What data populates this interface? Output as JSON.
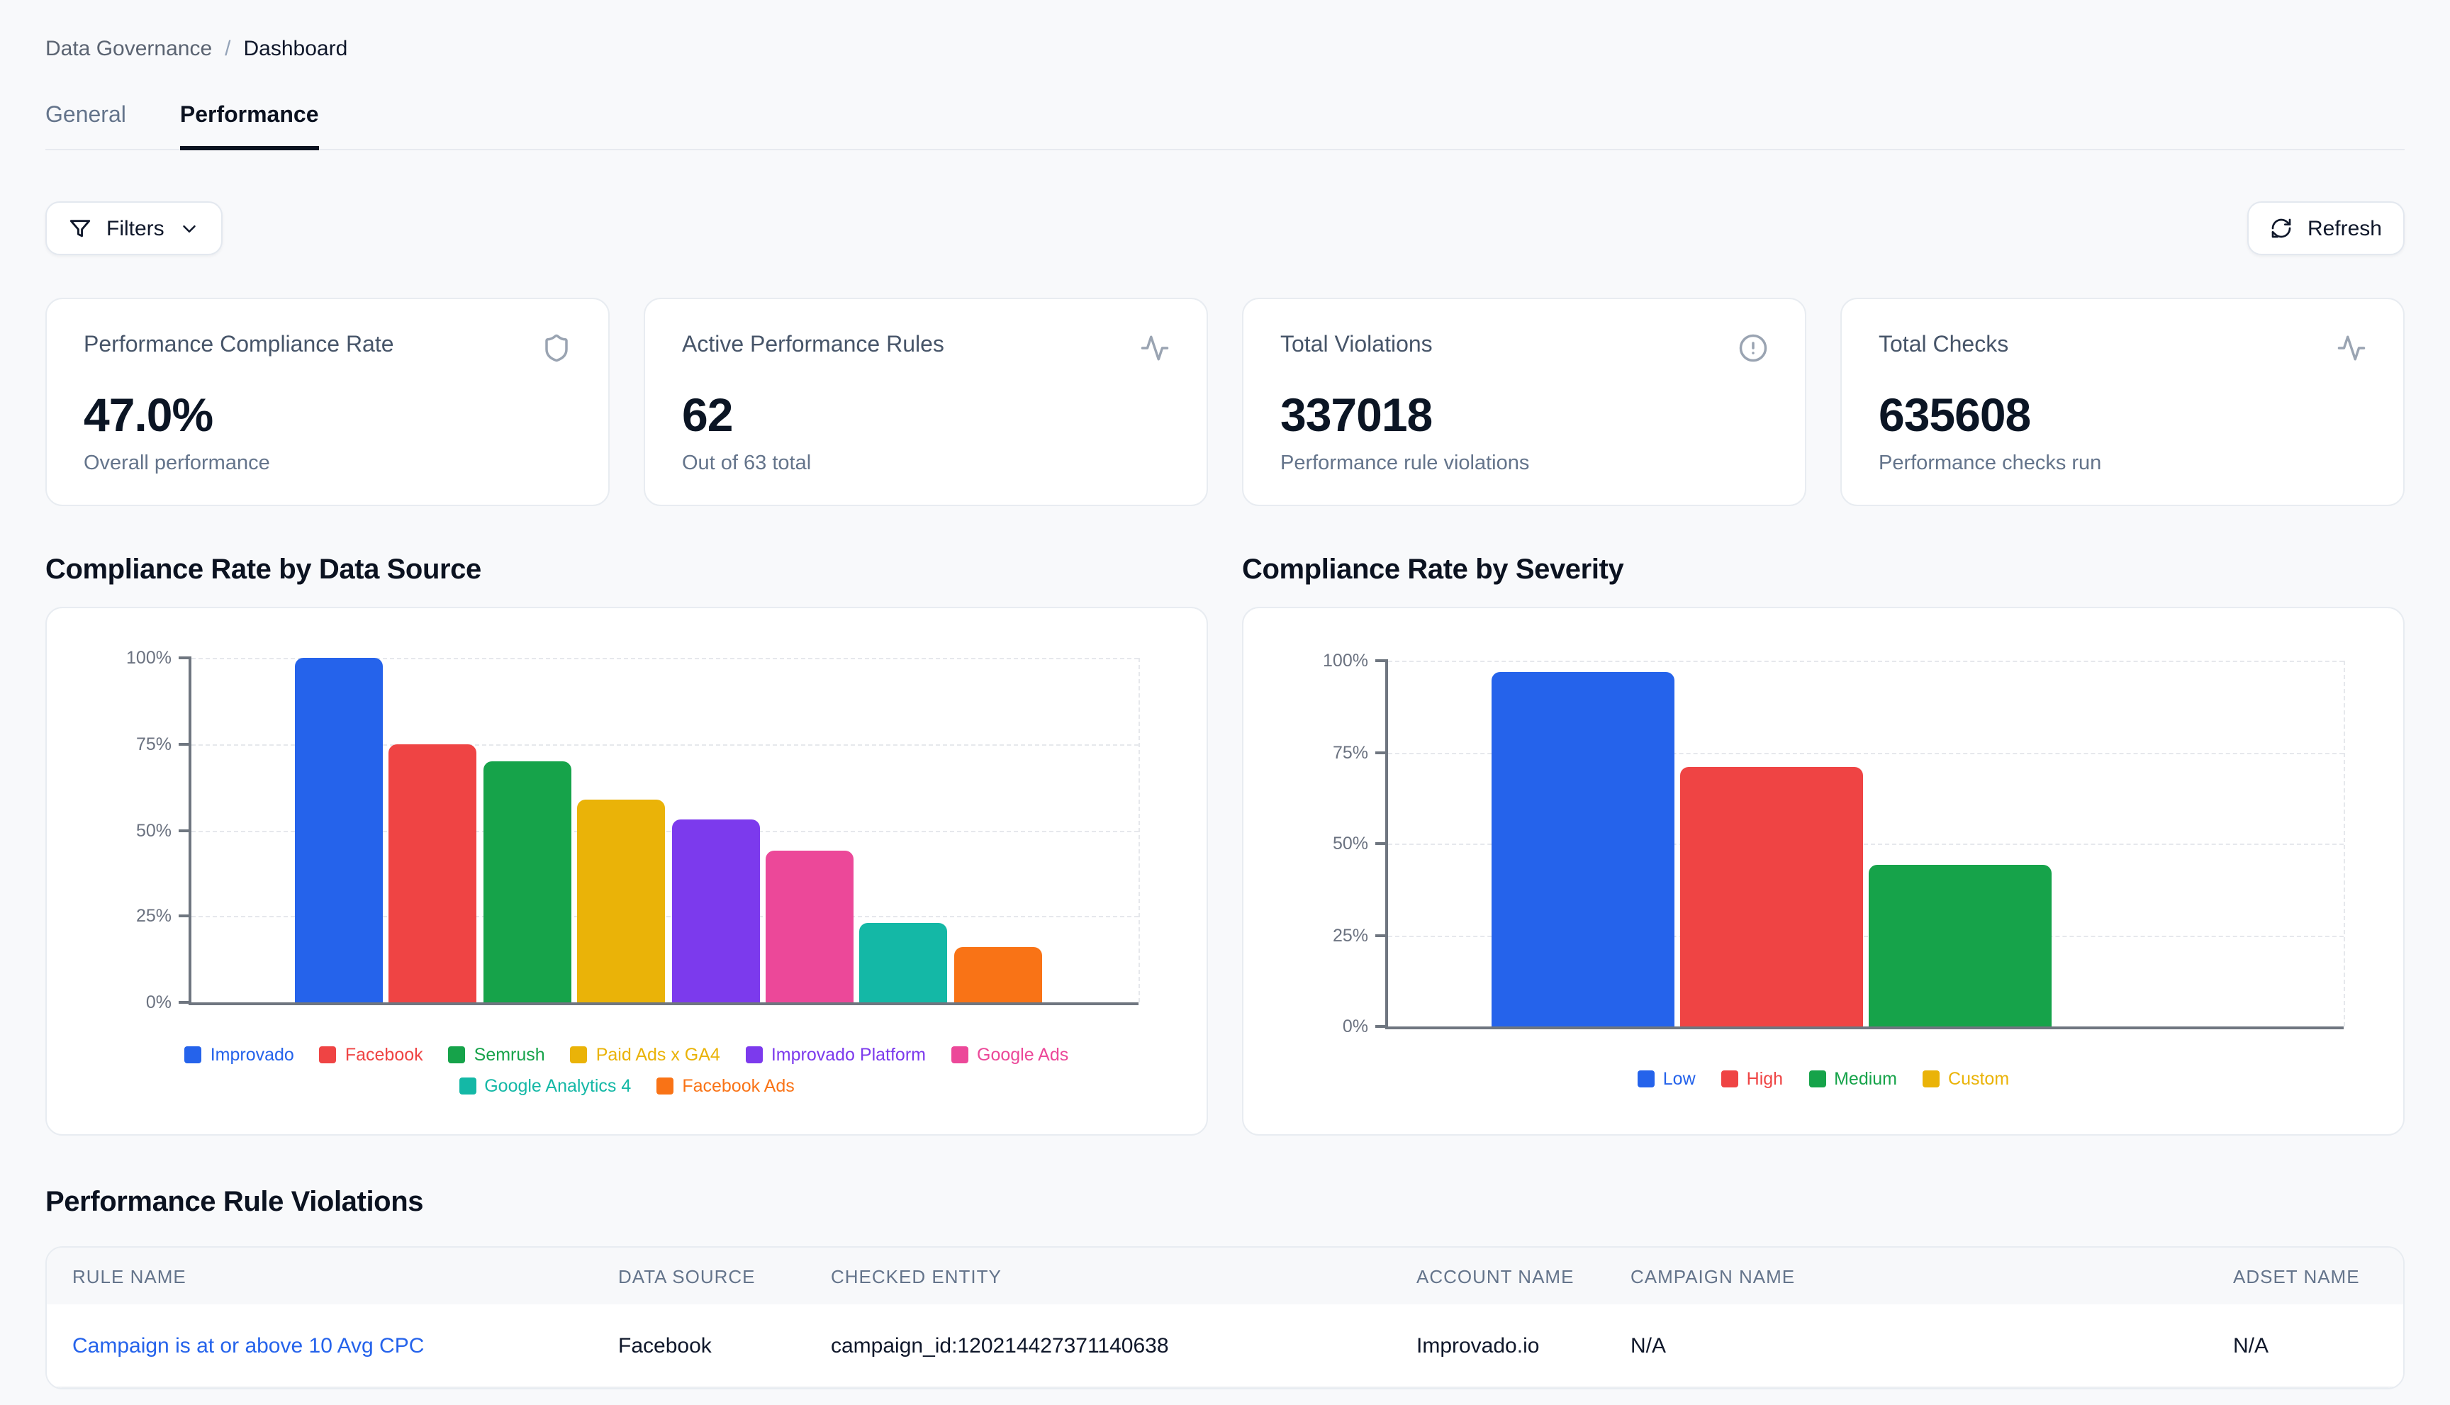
{
  "breadcrumb": {
    "section": "Data Governance",
    "separator": "/",
    "page": "Dashboard"
  },
  "tabs": [
    {
      "label": "General",
      "active": false
    },
    {
      "label": "Performance",
      "active": true
    }
  ],
  "toolbar": {
    "filters_label": "Filters",
    "filters_icon": "filter-funnel",
    "filters_chevron_icon": "chevron-down",
    "refresh_label": "Refresh",
    "refresh_icon": "refresh"
  },
  "stat_cards": [
    {
      "title": "Performance Compliance Rate",
      "value": "47.0%",
      "subtitle": "Overall performance",
      "icon": "shield"
    },
    {
      "title": "Active Performance Rules",
      "value": "62",
      "subtitle": "Out of 63 total",
      "icon": "activity"
    },
    {
      "title": "Total Violations",
      "value": "337018",
      "subtitle": "Performance rule violations",
      "icon": "alert-circle"
    },
    {
      "title": "Total Checks",
      "value": "635608",
      "subtitle": "Performance checks run",
      "icon": "activity"
    }
  ],
  "chart_data": [
    {
      "type": "bar",
      "title": "Compliance Rate by Data Source",
      "categories": [
        "Improvado",
        "Facebook",
        "Semrush",
        "Paid Ads x GA4",
        "Improvado Platform",
        "Google Ads",
        "Google Analytics 4",
        "Facebook Ads"
      ],
      "values": [
        100,
        75,
        70,
        59,
        53,
        44,
        23,
        16
      ],
      "unit": "%",
      "colors": [
        "#2563EB",
        "#EF4444",
        "#16A34A",
        "#EAB308",
        "#7C3AED",
        "#EC4899",
        "#14B8A6",
        "#F97316"
      ],
      "ylim": [
        0,
        100
      ],
      "ytick_values": [
        0,
        25,
        50,
        75,
        100
      ],
      "ytick_labels": [
        "0%",
        "25%",
        "50%",
        "75%",
        "100%"
      ],
      "grid": "dashed-horizontal",
      "legend_position": "bottom"
    },
    {
      "type": "bar",
      "title": "Compliance Rate by Severity",
      "categories": [
        "Low",
        "High",
        "Medium",
        "Custom"
      ],
      "values": [
        97,
        71,
        44,
        0
      ],
      "unit": "%",
      "colors": [
        "#2563EB",
        "#EF4444",
        "#16A34A",
        "#EAB308"
      ],
      "ylim": [
        0,
        100
      ],
      "ytick_values": [
        0,
        25,
        50,
        75,
        100
      ],
      "ytick_labels": [
        "0%",
        "25%",
        "50%",
        "75%",
        "100%"
      ],
      "grid": "dashed-horizontal",
      "legend_position": "bottom"
    }
  ],
  "violations_table": {
    "title": "Performance Rule Violations",
    "columns": [
      "RULE NAME",
      "DATA SOURCE",
      "CHECKED ENTITY",
      "ACCOUNT NAME",
      "CAMPAIGN NAME",
      "ADSET NAME"
    ],
    "rows": [
      [
        "Campaign is at or above 10 Avg CPC",
        "Facebook",
        "campaign_id:120214427371140638",
        "Improvado.io",
        "N/A",
        "N/A"
      ]
    ],
    "link_color": "#2563EB"
  },
  "colors": {
    "page_bg": "#F8F9FB",
    "card_bg": "#FFFFFF",
    "card_border": "#E8ECF1",
    "text_primary": "#0F172A",
    "text_secondary": "#64748B",
    "axis": "#6F7680",
    "link": "#2563EB"
  }
}
